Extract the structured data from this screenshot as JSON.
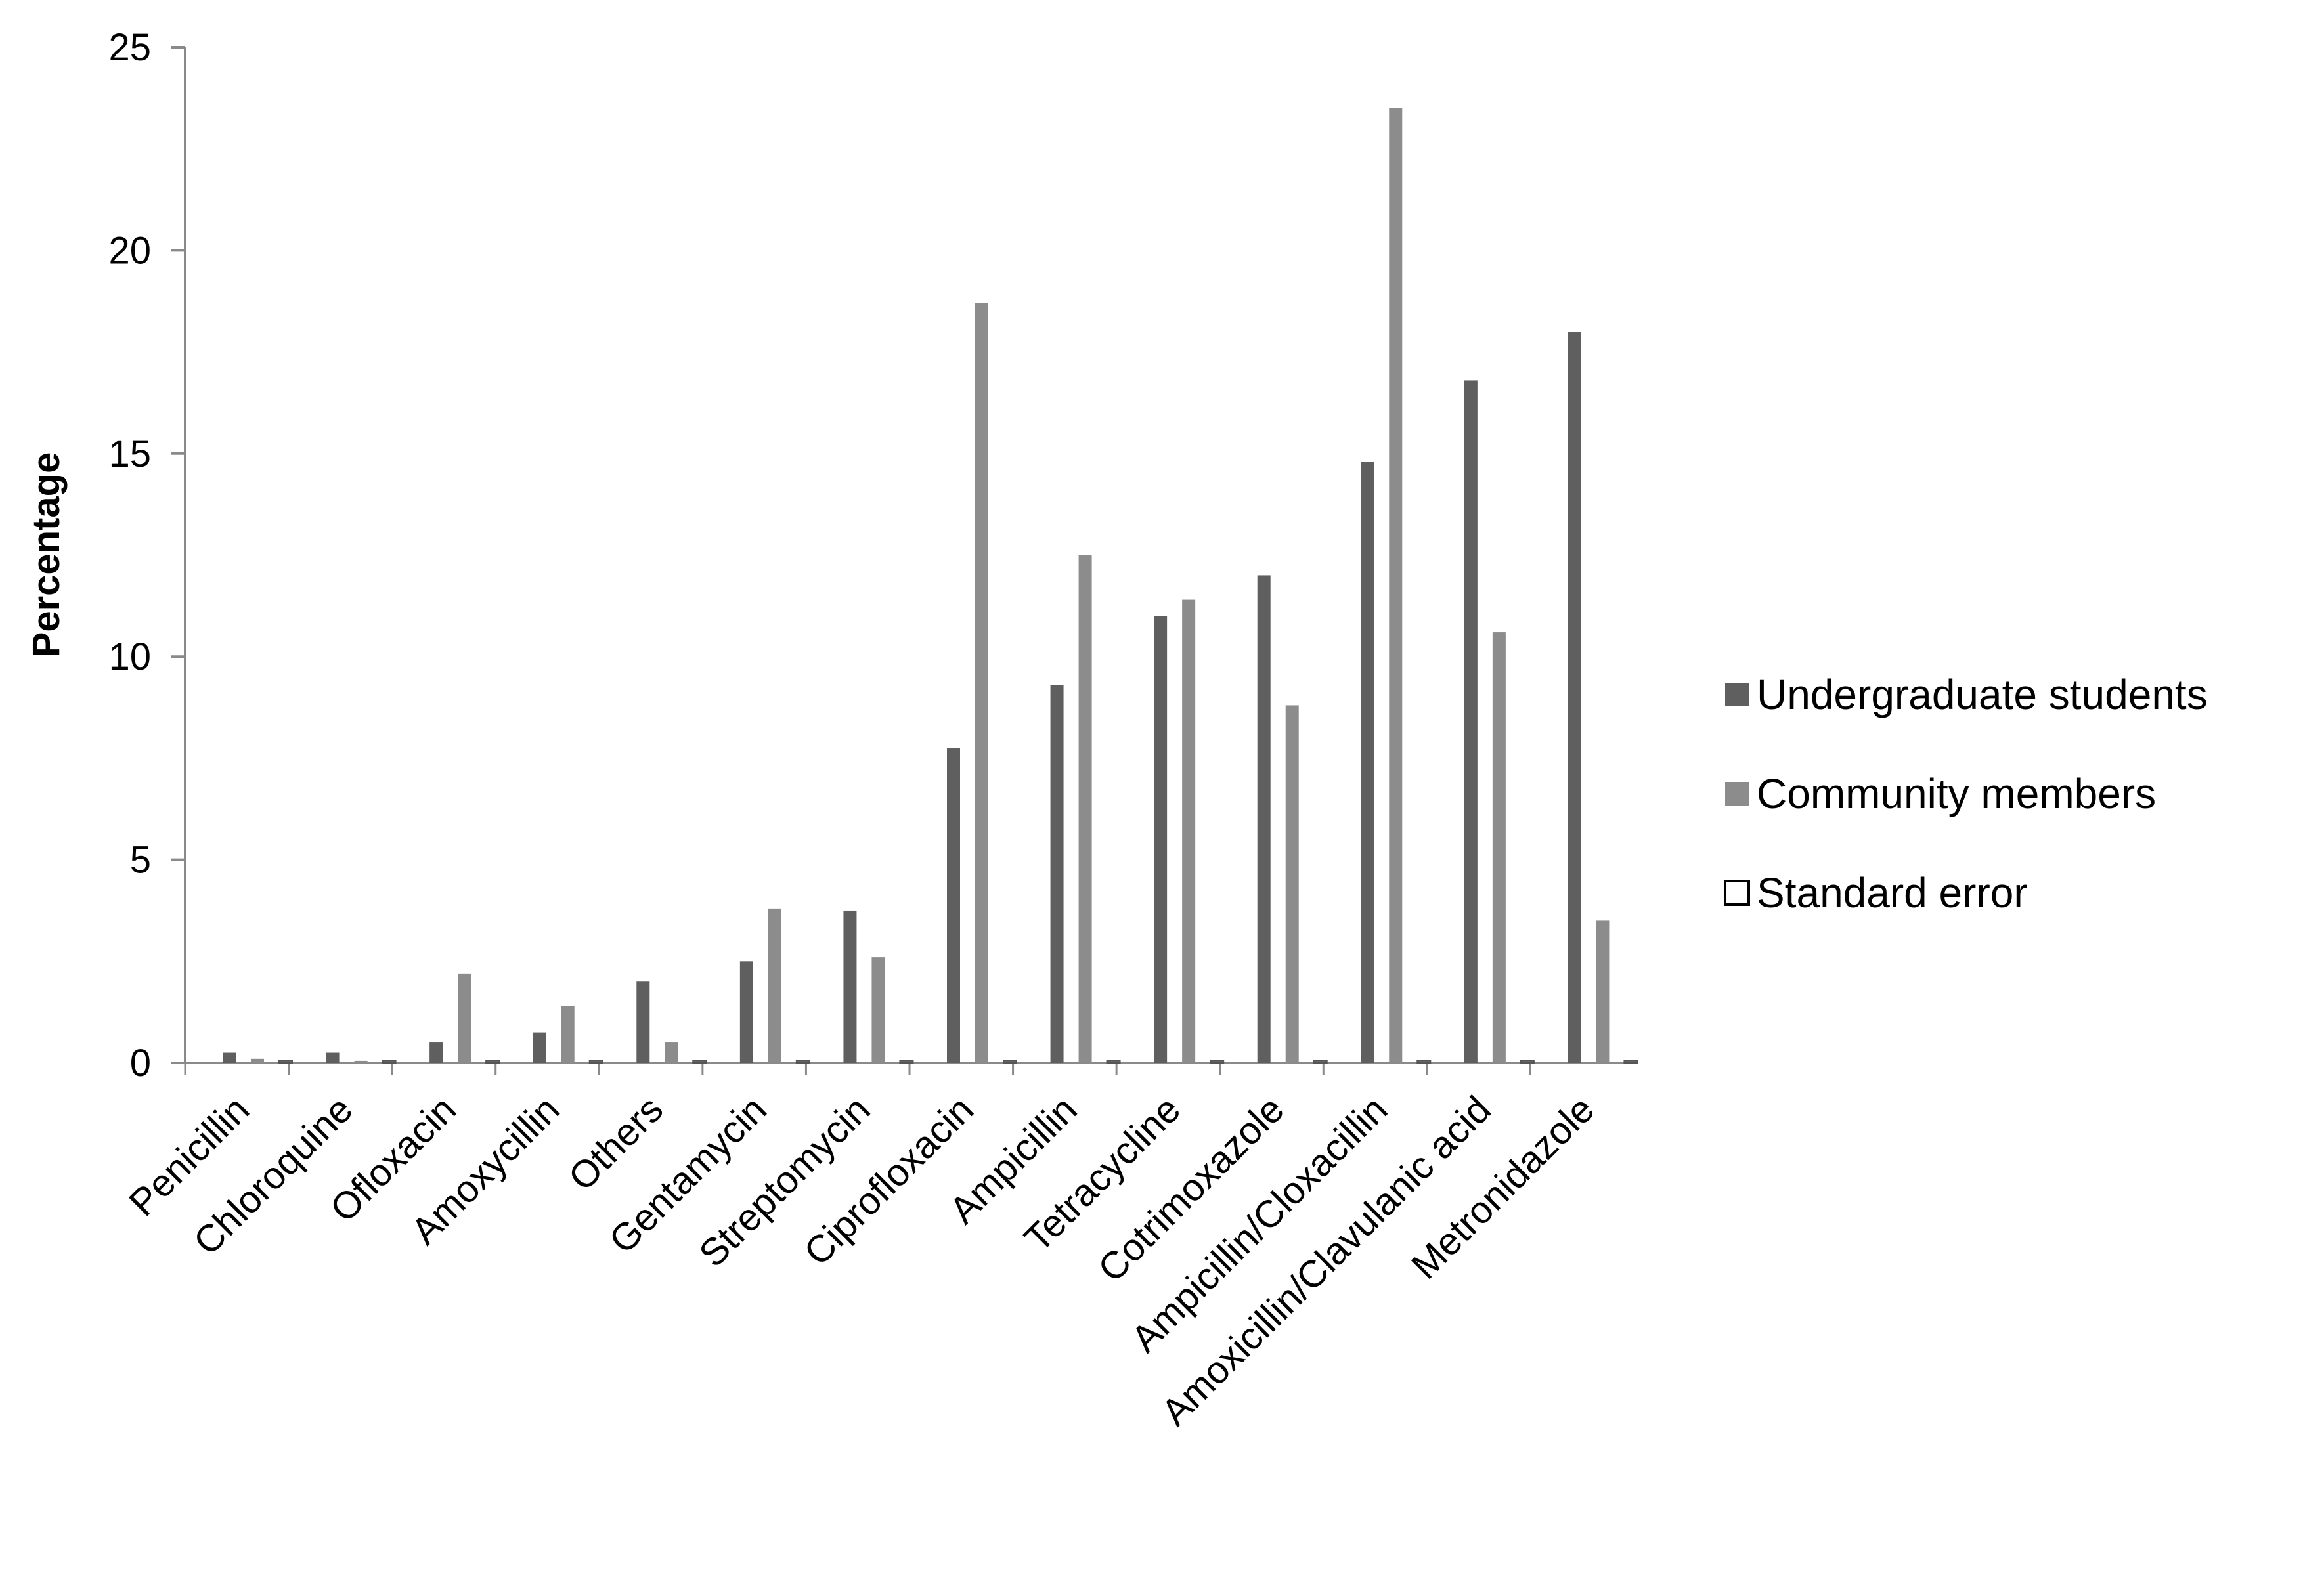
{
  "chart_data": {
    "type": "bar",
    "title": "",
    "xlabel": "",
    "ylabel": "Percentage",
    "ylim": [
      0,
      25
    ],
    "yticks": [
      "0",
      "5",
      "10",
      "15",
      "20",
      "25"
    ],
    "grid": false,
    "legend_position": "right",
    "categories": [
      "Penicillin",
      "Chloroquine",
      "Ofloxacin",
      "Amoxycillin",
      "Others",
      "Gentamycin",
      "Streptomycin",
      "Ciprofloxacin",
      "Ampicillin",
      "Tetracycline",
      "Cotrimoxazole",
      "Ampicillin/Cloxacillin",
      "Amoxicillin/Clavulanic acid",
      "Metronidazole"
    ],
    "series": [
      {
        "name": "Undergraduate students",
        "color": "#5f5f5f",
        "values": [
          0.25,
          0.25,
          0.5,
          0.75,
          2.0,
          2.5,
          3.75,
          7.75,
          9.3,
          11.0,
          12.0,
          14.8,
          16.8,
          18.0
        ]
      },
      {
        "name": "Community members",
        "color": "#8c8c8c",
        "values": [
          0.1,
          0.05,
          2.2,
          1.4,
          0.5,
          3.8,
          2.6,
          18.7,
          12.5,
          11.4,
          8.8,
          23.5,
          10.6,
          3.5
        ]
      },
      {
        "name": "Standard error",
        "color": "#ffffff",
        "values": [
          0.05,
          0.05,
          0.05,
          0.05,
          0.05,
          0.05,
          0.05,
          0.05,
          0.05,
          0.05,
          0.05,
          0.05,
          0.05,
          0.05
        ]
      }
    ]
  }
}
